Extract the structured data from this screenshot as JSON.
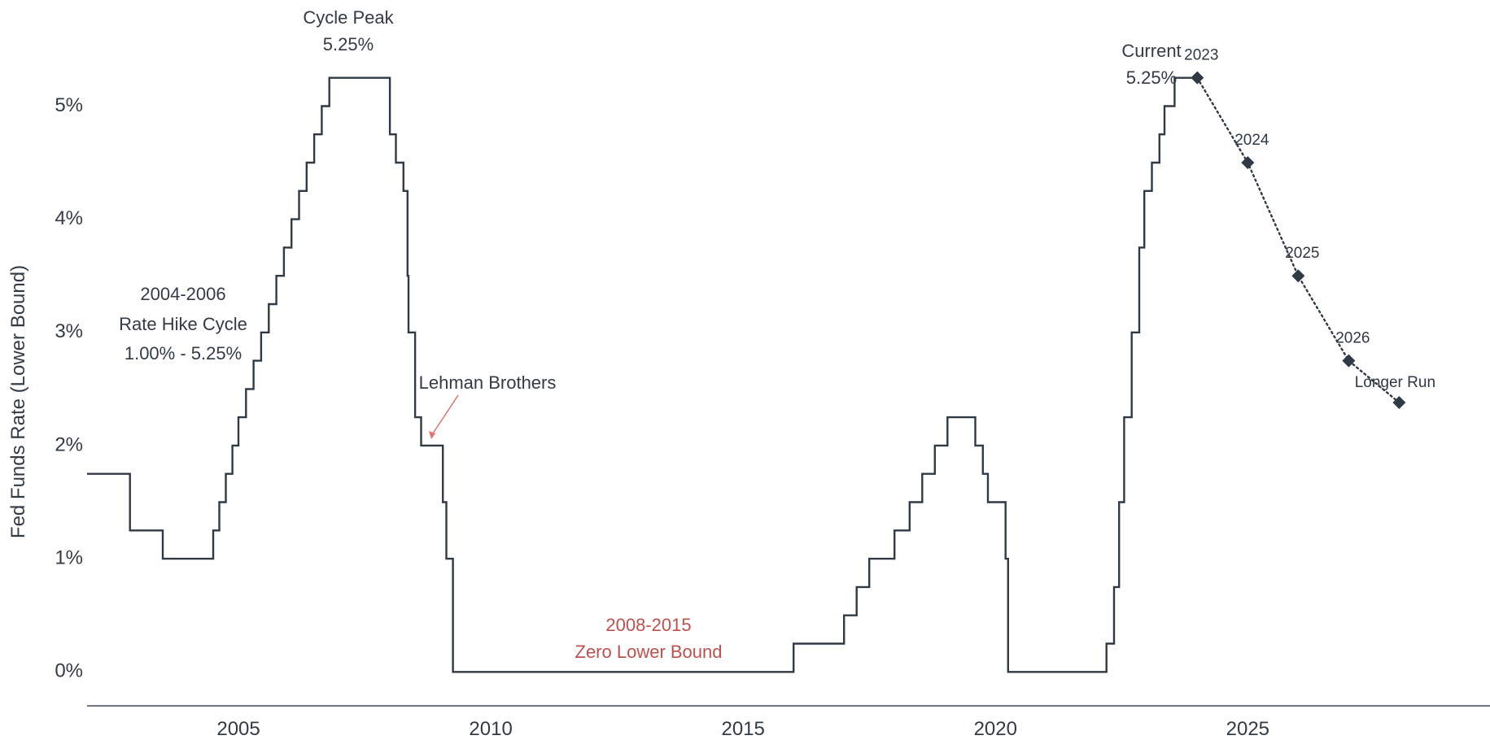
{
  "chart_data": {
    "type": "line",
    "ylabel": "Fed Funds Rate (Lower Bound)",
    "xlabel": "",
    "xlim": [
      2002.0,
      2029.8
    ],
    "ylim": [
      -0.3,
      5.65
    ],
    "x_ticks": [
      2005,
      2010,
      2015,
      2020,
      2025
    ],
    "x_tick_labels": [
      "2005",
      "2010",
      "2015",
      "2020",
      "2025"
    ],
    "y_ticks": [
      0,
      1,
      2,
      3,
      4,
      5
    ],
    "y_tick_labels": [
      "0%",
      "1%",
      "2%",
      "3%",
      "4%",
      "5%"
    ],
    "color": "#2f3a44",
    "series": [
      {
        "style": "step",
        "points": [
          [
            2002.0,
            1.75
          ],
          [
            2002.85,
            1.75
          ],
          [
            2002.85,
            1.25
          ],
          [
            2003.5,
            1.25
          ],
          [
            2003.5,
            1.0
          ],
          [
            2004.5,
            1.0
          ],
          [
            2004.5,
            1.25
          ],
          [
            2004.62,
            1.25
          ],
          [
            2004.62,
            1.5
          ],
          [
            2004.75,
            1.5
          ],
          [
            2004.75,
            1.75
          ],
          [
            2004.88,
            1.75
          ],
          [
            2004.88,
            2.0
          ],
          [
            2005.0,
            2.0
          ],
          [
            2005.0,
            2.25
          ],
          [
            2005.15,
            2.25
          ],
          [
            2005.15,
            2.5
          ],
          [
            2005.3,
            2.5
          ],
          [
            2005.3,
            2.75
          ],
          [
            2005.45,
            2.75
          ],
          [
            2005.45,
            3.0
          ],
          [
            2005.6,
            3.0
          ],
          [
            2005.6,
            3.25
          ],
          [
            2005.75,
            3.25
          ],
          [
            2005.75,
            3.5
          ],
          [
            2005.9,
            3.5
          ],
          [
            2005.9,
            3.75
          ],
          [
            2006.05,
            3.75
          ],
          [
            2006.05,
            4.0
          ],
          [
            2006.2,
            4.0
          ],
          [
            2006.2,
            4.25
          ],
          [
            2006.35,
            4.25
          ],
          [
            2006.35,
            4.5
          ],
          [
            2006.5,
            4.5
          ],
          [
            2006.5,
            4.75
          ],
          [
            2006.65,
            4.75
          ],
          [
            2006.65,
            5.0
          ],
          [
            2006.8,
            5.0
          ],
          [
            2006.8,
            5.25
          ],
          [
            2008.0,
            5.25
          ],
          [
            2008.0,
            4.75
          ],
          [
            2008.12,
            4.75
          ],
          [
            2008.12,
            4.5
          ],
          [
            2008.27,
            4.5
          ],
          [
            2008.27,
            4.25
          ],
          [
            2008.35,
            4.25
          ],
          [
            2008.35,
            3.5
          ],
          [
            2008.37,
            3.5
          ],
          [
            2008.37,
            3.0
          ],
          [
            2008.5,
            3.0
          ],
          [
            2008.5,
            2.25
          ],
          [
            2008.62,
            2.25
          ],
          [
            2008.62,
            2.0
          ],
          [
            2009.05,
            2.0
          ],
          [
            2009.05,
            1.5
          ],
          [
            2009.12,
            1.5
          ],
          [
            2009.12,
            1.0
          ],
          [
            2009.25,
            1.0
          ],
          [
            2009.25,
            0.0
          ],
          [
            2016.0,
            0.0
          ],
          [
            2016.0,
            0.25
          ],
          [
            2017.0,
            0.25
          ],
          [
            2017.0,
            0.5
          ],
          [
            2017.25,
            0.5
          ],
          [
            2017.25,
            0.75
          ],
          [
            2017.5,
            0.75
          ],
          [
            2017.5,
            1.0
          ],
          [
            2018.0,
            1.0
          ],
          [
            2018.0,
            1.25
          ],
          [
            2018.3,
            1.25
          ],
          [
            2018.3,
            1.5
          ],
          [
            2018.55,
            1.5
          ],
          [
            2018.55,
            1.75
          ],
          [
            2018.8,
            1.75
          ],
          [
            2018.8,
            2.0
          ],
          [
            2019.05,
            2.0
          ],
          [
            2019.05,
            2.25
          ],
          [
            2019.6,
            2.25
          ],
          [
            2019.6,
            2.0
          ],
          [
            2019.75,
            2.0
          ],
          [
            2019.75,
            1.75
          ],
          [
            2019.85,
            1.75
          ],
          [
            2019.85,
            1.5
          ],
          [
            2020.2,
            1.5
          ],
          [
            2020.2,
            1.0
          ],
          [
            2020.25,
            1.0
          ],
          [
            2020.25,
            0.0
          ],
          [
            2022.2,
            0.0
          ],
          [
            2022.2,
            0.25
          ],
          [
            2022.35,
            0.25
          ],
          [
            2022.35,
            0.75
          ],
          [
            2022.45,
            0.75
          ],
          [
            2022.45,
            1.5
          ],
          [
            2022.55,
            1.5
          ],
          [
            2022.55,
            2.25
          ],
          [
            2022.7,
            2.25
          ],
          [
            2022.7,
            3.0
          ],
          [
            2022.85,
            3.0
          ],
          [
            2022.85,
            3.75
          ],
          [
            2022.95,
            3.75
          ],
          [
            2022.95,
            4.25
          ],
          [
            2023.1,
            4.25
          ],
          [
            2023.1,
            4.5
          ],
          [
            2023.25,
            4.5
          ],
          [
            2023.25,
            4.75
          ],
          [
            2023.35,
            4.75
          ],
          [
            2023.35,
            5.0
          ],
          [
            2023.55,
            5.0
          ],
          [
            2023.55,
            5.25
          ],
          [
            2023.9,
            5.25
          ]
        ]
      },
      {
        "style": "projection",
        "points": [
          {
            "x": 2024.0,
            "y": 5.25,
            "label": "2023"
          },
          {
            "x": 2025.0,
            "y": 4.5,
            "label": "2024"
          },
          {
            "x": 2026.0,
            "y": 3.5,
            "label": "2025"
          },
          {
            "x": 2027.0,
            "y": 2.75,
            "label": "2026"
          },
          {
            "x": 2028.0,
            "y": 2.38,
            "label": "Longer Run"
          }
        ]
      }
    ]
  },
  "annotations": {
    "peak_title": "Cycle Peak",
    "peak_value": "5.25%",
    "hike_line1": "2004-2006",
    "hike_line2": "Rate Hike Cycle",
    "hike_line3": "1.00% - 5.25%",
    "lehman": "Lehman Brothers",
    "zlb_line1": "2008-2015",
    "zlb_line2": "Zero Lower Bound",
    "current_line1": "Current",
    "current_line2": "5.25%"
  },
  "colors": {
    "line": "#2f3a44",
    "zlb_text": "#c0504d",
    "lehman_arrow": "#e57373"
  }
}
